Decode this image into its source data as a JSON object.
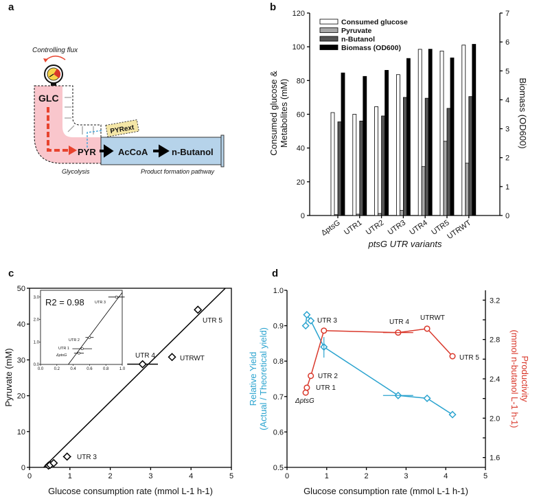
{
  "panels": {
    "a": "a",
    "b": "b",
    "c": "c",
    "d": "d"
  },
  "diagram": {
    "controlling_flux": "Controlling flux",
    "glc": "GLC",
    "pyr": "PYR",
    "pyr_ext": "PYRext",
    "accoa": "AcCoA",
    "butanol": "n-Butanol",
    "glycolysis": "Glycolysis",
    "product_pathway": "Product formation pathway",
    "colors": {
      "glycolysis": "#f9c6cc",
      "product": "#b6d3ea",
      "pyr_ext": "#f4e6a6",
      "flux": "#e8432e",
      "export": "#4aa6d8"
    }
  },
  "chart_data": [
    {
      "type": "bar",
      "title": "",
      "categories": [
        "ΔptsG",
        "UTR1",
        "UTR2",
        "UTR3",
        "UTR4",
        "UTR5",
        "UTRWT"
      ],
      "series": [
        {
          "name": "Consumed glucose",
          "axis": "left",
          "color": "#ffffff",
          "values": [
            61,
            60,
            64.5,
            83.5,
            98.5,
            97.5,
            101
          ]
        },
        {
          "name": "Pyruvate",
          "axis": "left",
          "color": "#a8a8a8",
          "values": [
            0.5,
            0.8,
            1.2,
            3,
            29,
            44,
            31
          ]
        },
        {
          "name": "n-Butanol",
          "axis": "left",
          "color": "#555555",
          "values": [
            55.5,
            56,
            59,
            70,
            69.5,
            63.5,
            70.5
          ]
        },
        {
          "name": "Biomass (OD600)",
          "axis": "right",
          "color": "#000000",
          "values": [
            4.93,
            4.81,
            5.02,
            5.43,
            5.75,
            5.45,
            5.92
          ]
        }
      ],
      "xlabel": "ptsG UTR variants",
      "ylabel": "Consumed glucose & Metabolites (mM)",
      "ylabel_line1": "Consumed glucose &",
      "ylabel_line2": "Metabolites (mM)",
      "y2label": "Biomass (OD600)",
      "ylim": [
        0,
        120
      ],
      "yticks": [
        "0",
        "20",
        "40",
        "60",
        "80",
        "100",
        "120"
      ],
      "y2lim": [
        0,
        7
      ],
      "y2ticks": [
        "0",
        "1",
        "2",
        "3",
        "4",
        "5",
        "6",
        "7"
      ],
      "legend": "top-left"
    },
    {
      "type": "scatter",
      "xlabel": "Glucose consumption rate (mmol L-1 h-1)",
      "ylabel": "Pyruvate (mM)",
      "xlim": [
        0,
        5
      ],
      "ylim": [
        0,
        50
      ],
      "xticks": [
        "0",
        "1",
        "2",
        "3",
        "4",
        "5"
      ],
      "yticks": [
        "0",
        "10",
        "20",
        "30",
        "40",
        "50"
      ],
      "points": [
        {
          "label": "ΔptsG",
          "x": 0.47,
          "y": 0.5,
          "xerr": 0.06
        },
        {
          "label": "UTR 1",
          "x": 0.51,
          "y": 0.7,
          "xerr": 0.12
        },
        {
          "label": "UTR 2",
          "x": 0.6,
          "y": 1.2,
          "xerr": 0.05
        },
        {
          "label": "UTR 3",
          "x": 0.93,
          "y": 3.0,
          "xerr": 0.1
        },
        {
          "label": "UTR 4",
          "x": 2.8,
          "y": 28.8,
          "xerr": 0.38
        },
        {
          "label": "UTRWT",
          "x": 3.53,
          "y": 30.8,
          "xerr": 0
        },
        {
          "label": "UTR 5",
          "x": 4.17,
          "y": 44,
          "xerr": 0
        }
      ],
      "fit": {
        "x": [
          0.35,
          4.85
        ],
        "y": [
          0,
          50
        ]
      },
      "inset": {
        "annotation": "R2 = 0.98",
        "xlim": [
          0,
          1
        ],
        "ylim": [
          0,
          3.3
        ],
        "xticks": [
          "0.0",
          "0.2",
          "0.4",
          "0.6",
          "0.8",
          "1.0"
        ],
        "yticks": [
          "0.0",
          "1.0",
          "2.0",
          "3.0"
        ]
      }
    },
    {
      "type": "line",
      "xlabel": "Glucose consumption rate (mmol L-1 h-1)",
      "ylabel": "Relative Yield (Actual / Theoretical yield)",
      "ylabel_line1": "Relative Yield",
      "ylabel_line2": "(Actual / Theoretical yield)",
      "y2label": "Productivity (mmol n-butanol L-1 h-1)",
      "y2label_line1": "Productivity",
      "y2label_line2": "(mmol n-butanol L-1 h-1)",
      "xlim": [
        0,
        5
      ],
      "ylim": [
        0.5,
        1.0
      ],
      "y2lim": [
        1.5,
        3.3
      ],
      "xticks": [
        "0",
        "1",
        "2",
        "3",
        "4",
        "5"
      ],
      "yticks": [
        "0.5",
        "0.6",
        "0.7",
        "0.8",
        "0.9",
        "1.0"
      ],
      "y2ticks": [
        "1.6",
        "2.0",
        "2.4",
        "2.8",
        "3.2"
      ],
      "labels": [
        "ΔptsG",
        "UTR 1",
        "UTR 2",
        "UTR 3",
        "UTR 4",
        "UTRWT",
        "UTR 5"
      ],
      "x": [
        0.47,
        0.5,
        0.6,
        0.93,
        2.8,
        3.53,
        4.17
      ],
      "series": [
        {
          "name": "Relative Yield",
          "axis": "left",
          "color": "#2aa3cf",
          "marker": "diamond",
          "values": [
            0.9,
            0.931,
            0.914,
            0.84,
            0.703,
            0.695,
            0.649
          ]
        },
        {
          "name": "Productivity",
          "axis": "right",
          "color": "#d9372a",
          "marker": "circle",
          "values": [
            2.26,
            2.31,
            2.43,
            2.89,
            2.87,
            2.91,
            2.63
          ]
        }
      ]
    }
  ]
}
